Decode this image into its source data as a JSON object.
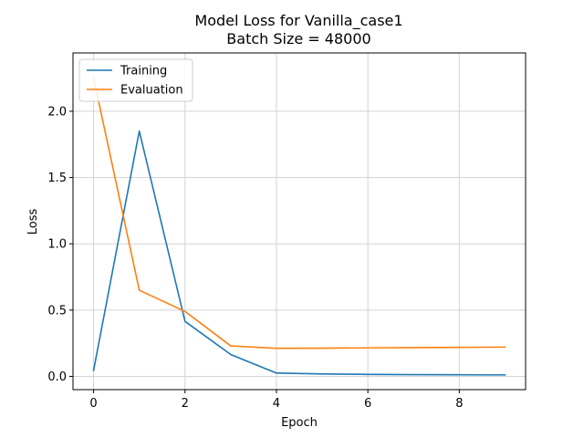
{
  "chart_data": {
    "type": "line",
    "title": "Model Loss for Vanilla_case1",
    "subtitle": "Batch Size = 48000",
    "xlabel": "Epoch",
    "ylabel": "Loss",
    "xlim": [
      -0.45,
      9.45
    ],
    "ylim": [
      -0.1,
      2.44
    ],
    "xticks": [
      0,
      2,
      4,
      6,
      8
    ],
    "yticks": [
      0.0,
      0.5,
      1.0,
      1.5,
      2.0
    ],
    "xtick_labels": [
      "0",
      "2",
      "4",
      "6",
      "8"
    ],
    "ytick_labels": [
      "0.0",
      "0.5",
      "1.0",
      "1.5",
      "2.0"
    ],
    "grid": true,
    "legend_position": "upper-left",
    "x": [
      0,
      1,
      2,
      3,
      4,
      5,
      6,
      7,
      8,
      9
    ],
    "series": [
      {
        "name": "Training",
        "color": "#1f77b4",
        "values": [
          0.045,
          1.85,
          0.415,
          0.165,
          0.025,
          0.018,
          0.015,
          0.013,
          0.012,
          0.011
        ]
      },
      {
        "name": "Evaluation",
        "color": "#ff7f0e",
        "values": [
          2.25,
          0.65,
          0.49,
          0.23,
          0.212,
          0.213,
          0.215,
          0.217,
          0.219,
          0.221
        ]
      }
    ]
  }
}
